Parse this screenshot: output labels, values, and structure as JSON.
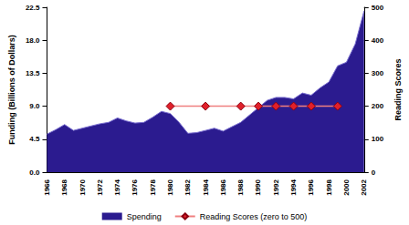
{
  "chart_data": {
    "type": "area",
    "xlim": [
      1966,
      2002
    ],
    "xticks": [
      1966,
      1968,
      1970,
      1972,
      1974,
      1976,
      1978,
      1980,
      1982,
      1984,
      1986,
      1988,
      1990,
      1992,
      1994,
      1996,
      1998,
      2000,
      2002
    ],
    "ylabel": "Funding (Billions of Dollars)",
    "ylim": [
      0,
      22.5
    ],
    "yticks": [
      {
        "value": 0,
        "label": "0.0"
      },
      {
        "value": 4.5,
        "label": "4.5"
      },
      {
        "value": 9,
        "label": "9.0"
      },
      {
        "value": 13.5,
        "label": "13.5"
      },
      {
        "value": 18,
        "label": "18.0"
      },
      {
        "value": 22.5,
        "label": "22.5"
      }
    ],
    "y2label": "Reading Scores",
    "y2lim": [
      0,
      500
    ],
    "y2ticks": [
      0,
      100,
      200,
      300,
      400,
      500
    ],
    "grid": false,
    "legend": "bottom",
    "series": [
      {
        "name": "Spending",
        "type": "area",
        "color": "#2b1b8f",
        "x": [
          1966,
          1967,
          1968,
          1969,
          1970,
          1971,
          1972,
          1973,
          1974,
          1975,
          1976,
          1977,
          1978,
          1979,
          1980,
          1981,
          1982,
          1983,
          1984,
          1985,
          1986,
          1987,
          1988,
          1989,
          1990,
          1991,
          1992,
          1993,
          1994,
          1995,
          1996,
          1997,
          1998,
          1999,
          2000,
          2001,
          2002
        ],
        "values": [
          5.2,
          5.8,
          6.5,
          5.7,
          6.0,
          6.3,
          6.6,
          6.8,
          7.4,
          7.0,
          6.7,
          6.8,
          7.5,
          8.3,
          8.0,
          6.8,
          5.3,
          5.4,
          5.7,
          6.0,
          5.6,
          6.2,
          6.8,
          7.8,
          8.8,
          9.8,
          10.2,
          10.2,
          10.0,
          10.8,
          10.5,
          11.5,
          12.3,
          14.5,
          15.0,
          17.5,
          22.0
        ]
      },
      {
        "name": "Reading Scores (zero to 500)",
        "type": "line",
        "axis": "y2",
        "color": "#e0202a",
        "marker": "diamond",
        "x": [
          1980,
          1984,
          1988,
          1990,
          1992,
          1994,
          1996,
          1999
        ],
        "values": [
          200,
          200,
          200,
          200,
          200,
          200,
          200,
          200
        ]
      }
    ]
  }
}
